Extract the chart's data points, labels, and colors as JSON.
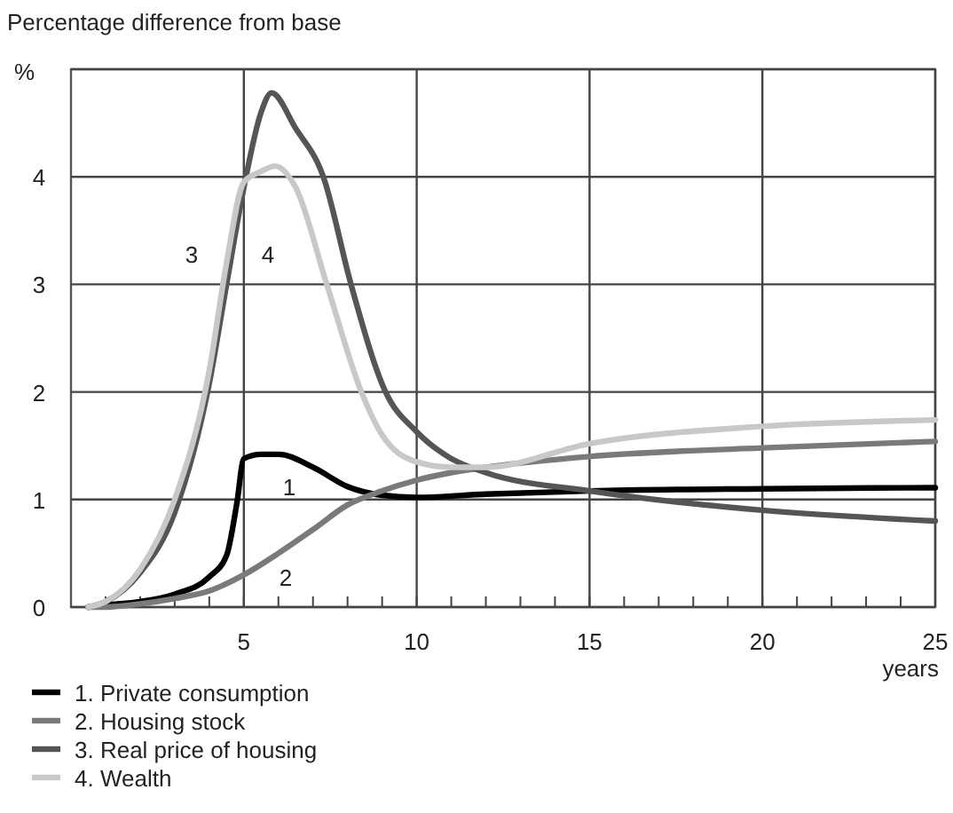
{
  "chart_data": {
    "type": "line",
    "title": "Percentage difference from base",
    "ylabel": "%",
    "xlabel": "years",
    "xlim": [
      0,
      25
    ],
    "ylim": [
      0,
      5
    ],
    "xticks": [
      {
        "value": 1,
        "label": null
      },
      {
        "value": 2,
        "label": null
      },
      {
        "value": 3,
        "label": null
      },
      {
        "value": 4,
        "label": null
      },
      5,
      {
        "value": 6,
        "label": null
      },
      {
        "value": 7,
        "label": null
      },
      {
        "value": 8,
        "label": null
      },
      {
        "value": 9,
        "label": null
      },
      10,
      {
        "value": 11,
        "label": null
      },
      {
        "value": 12,
        "label": null
      },
      {
        "value": 13,
        "label": null
      },
      {
        "value": 14,
        "label": null
      },
      15,
      {
        "value": 16,
        "label": null
      },
      {
        "value": 17,
        "label": null
      },
      {
        "value": 18,
        "label": null
      },
      {
        "value": 19,
        "label": null
      },
      20,
      {
        "value": 21,
        "label": null
      },
      {
        "value": 22,
        "label": null
      },
      {
        "value": 23,
        "label": null
      },
      {
        "value": 24,
        "label": null
      },
      25
    ],
    "yticks": [
      0,
      1,
      2,
      3,
      4,
      {
        "value": 5,
        "label": null
      }
    ],
    "grid": true,
    "legend": "bottom",
    "line_style": "solid",
    "marker": "none",
    "series": [
      {
        "name": "1. Private consumption",
        "color": "#000000",
        "x": [
          0.5,
          1,
          2,
          3,
          4,
          4.5,
          4.8,
          5,
          5.5,
          6,
          7,
          8,
          9,
          10,
          12,
          15,
          20,
          25
        ],
        "values": [
          0,
          0.02,
          0.05,
          0.12,
          0.28,
          0.48,
          0.97,
          1.38,
          1.42,
          1.42,
          1.3,
          1.12,
          1.04,
          1.02,
          1.05,
          1.08,
          1.1,
          1.11
        ]
      },
      {
        "name": "2. Housing stock",
        "color": "#7a7a7a",
        "x": [
          0.5,
          1,
          2,
          3,
          4,
          5,
          6,
          7,
          8,
          9,
          10,
          11,
          12,
          15,
          20,
          25
        ],
        "values": [
          0,
          0,
          0.03,
          0.08,
          0.15,
          0.3,
          0.5,
          0.72,
          0.95,
          1.08,
          1.18,
          1.25,
          1.3,
          1.4,
          1.48,
          1.54
        ]
      },
      {
        "name": "3. Real price of housing",
        "color": "#555555",
        "x": [
          0.5,
          1,
          2,
          3,
          4,
          4.5,
          5,
          5.5,
          5.8,
          6.5,
          7.3,
          8.1,
          9.1,
          10,
          11,
          12,
          15,
          20,
          25
        ],
        "values": [
          0,
          0.05,
          0.32,
          0.88,
          2.08,
          3.0,
          3.9,
          4.6,
          4.78,
          4.45,
          4.0,
          3.0,
          2.0,
          1.63,
          1.38,
          1.25,
          1.08,
          0.9,
          0.8
        ]
      },
      {
        "name": "4. Wealth",
        "color": "#c8c8c8",
        "x": [
          0.5,
          1,
          2,
          3,
          4,
          4.5,
          5,
          5.5,
          5.9,
          6.5,
          7.4,
          8.4,
          9,
          10,
          11,
          12,
          15,
          20,
          25
        ],
        "values": [
          0,
          0.05,
          0.35,
          1.0,
          2.2,
          3.2,
          3.95,
          4.05,
          4.1,
          3.9,
          3.0,
          2.0,
          1.6,
          1.35,
          1.3,
          1.3,
          1.52,
          1.68,
          1.74
        ]
      }
    ],
    "annotations": [
      "1",
      "2",
      "3",
      "4"
    ]
  }
}
